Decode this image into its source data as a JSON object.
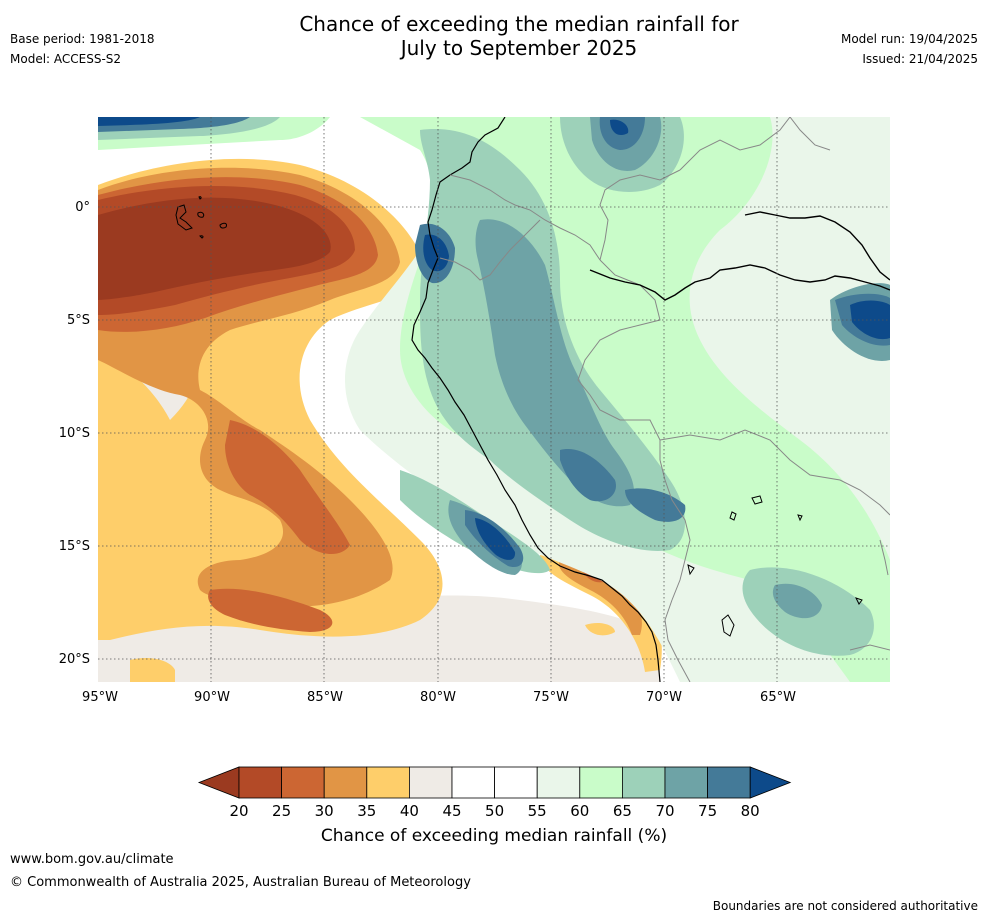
{
  "header": {
    "title_line1": "Chance of exceeding the median rainfall for",
    "title_line2": "July to September 2025",
    "base_period": "Base period: 1981-2018",
    "model": "Model: ACCESS-S2",
    "model_run": "Model run: 19/04/2025",
    "issued": "Issued: 21/04/2025"
  },
  "map": {
    "lon_labels": [
      "95°W",
      "90°W",
      "85°W",
      "80°W",
      "75°W",
      "70°W",
      "65°W"
    ],
    "lat_labels": [
      "0°",
      "5°S",
      "10°S",
      "15°S",
      "20°S"
    ],
    "colors": {
      "ocean_dry": "#9b3a20",
      "c25": "#b34a27",
      "c30": "#cc6633",
      "c35": "#e19545",
      "c40": "#fece6a",
      "c45": "#efebe6",
      "c50": "#ffffff",
      "c60": "#eaf6ea",
      "c65": "#c9fcc9",
      "c70": "#9dd1b9",
      "c75": "#6ea3a6",
      "c80": "#447a98",
      "c80plus": "#0d4a8a"
    }
  },
  "colorbar": {
    "ticks": [
      "20",
      "25",
      "30",
      "35",
      "40",
      "45",
      "50",
      "55",
      "60",
      "65",
      "70",
      "75",
      "80"
    ],
    "colors": [
      "#9b3a20",
      "#b34a27",
      "#cc6633",
      "#e19545",
      "#fece6a",
      "#efebe6",
      "#ffffff",
      "#ffffff",
      "#eaf6ea",
      "#c9fcc9",
      "#9dd1b9",
      "#6ea3a6",
      "#447a98",
      "#0d4a8a"
    ],
    "title": "Chance of exceeding median rainfall (%)"
  },
  "footer": {
    "website": "www.bom.gov.au/climate",
    "copyright": "© Commonwealth of Australia 2025, Australian Bureau of Meteorology",
    "disclaimer": "Boundaries are not considered authoritative"
  }
}
